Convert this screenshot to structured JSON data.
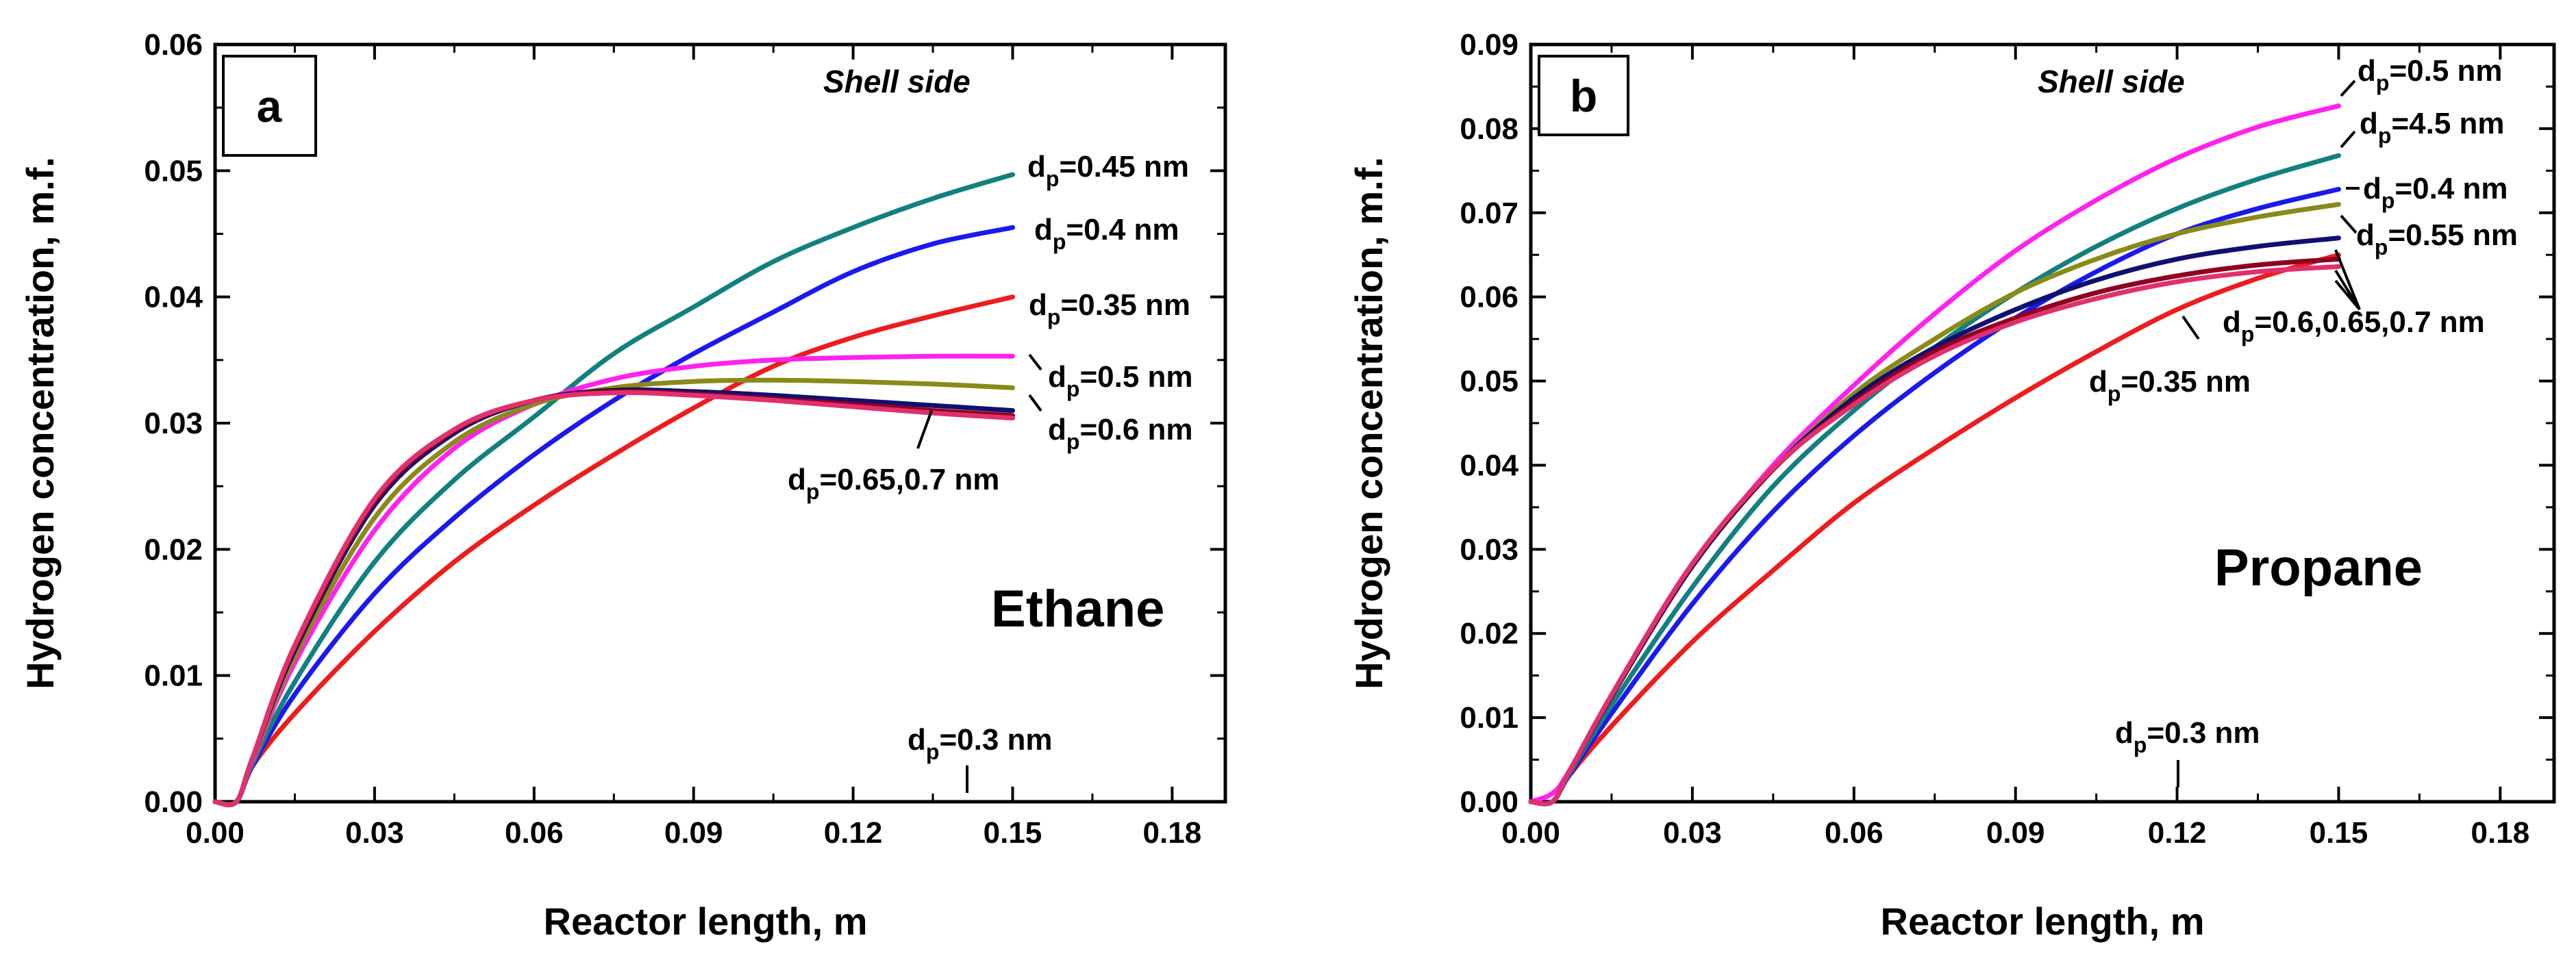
{
  "chart_data": [
    {
      "type": "line",
      "panel_label": "a",
      "annotation_top": "Shell side",
      "gas_label": "Ethane",
      "xlabel": "Reactor length, m",
      "ylabel": "Hydrogen concentration, m.f.",
      "xlim": [
        0,
        0.19
      ],
      "ylim": [
        0,
        0.06
      ],
      "xticks": [
        "0.00",
        "0.03",
        "0.06",
        "0.09",
        "0.12",
        "0.15",
        "0.18"
      ],
      "yticks": [
        "0.00",
        "0.01",
        "0.02",
        "0.03",
        "0.04",
        "0.05",
        "0.06"
      ],
      "series": [
        {
          "name": "dp=0.35 nm",
          "color": "#ee1c1c",
          "x": [
            0,
            0.004,
            0.007,
            0.015,
            0.03,
            0.045,
            0.06,
            0.075,
            0.09,
            0.105,
            0.12,
            0.135,
            0.15
          ],
          "y": [
            0,
            0,
            0.0028,
            0.007,
            0.0135,
            0.019,
            0.0235,
            0.0275,
            0.0312,
            0.0345,
            0.0368,
            0.0385,
            0.04
          ]
        },
        {
          "name": "dp=0.4 nm",
          "color": "#1a1aee",
          "x": [
            0,
            0.004,
            0.007,
            0.015,
            0.03,
            0.045,
            0.06,
            0.075,
            0.09,
            0.105,
            0.12,
            0.135,
            0.15
          ],
          "y": [
            0,
            0,
            0.0028,
            0.0085,
            0.0165,
            0.0225,
            0.0275,
            0.0318,
            0.0355,
            0.0388,
            0.042,
            0.0442,
            0.0455
          ]
        },
        {
          "name": "dp=0.45 nm",
          "color": "#128080",
          "x": [
            0,
            0.004,
            0.007,
            0.015,
            0.03,
            0.045,
            0.06,
            0.075,
            0.09,
            0.105,
            0.12,
            0.135,
            0.15
          ],
          "y": [
            0,
            0,
            0.003,
            0.0095,
            0.019,
            0.0255,
            0.0305,
            0.0355,
            0.0392,
            0.0428,
            0.0455,
            0.0478,
            0.0497
          ]
        },
        {
          "name": "dp=0.5 nm",
          "color": "#ff22ee",
          "x": [
            0,
            0.004,
            0.007,
            0.015,
            0.03,
            0.045,
            0.06,
            0.075,
            0.09,
            0.105,
            0.12,
            0.135,
            0.15
          ],
          "y": [
            0,
            0,
            0.0032,
            0.011,
            0.0215,
            0.028,
            0.0315,
            0.0335,
            0.0345,
            0.035,
            0.0352,
            0.0353,
            0.0353
          ]
        },
        {
          "name": "dp=0.55 nm",
          "color": "#8a8a1a",
          "x": [
            0,
            0.004,
            0.007,
            0.015,
            0.03,
            0.045,
            0.06,
            0.075,
            0.09,
            0.105,
            0.12,
            0.135,
            0.15
          ],
          "y": [
            0,
            0,
            0.0033,
            0.0115,
            0.0225,
            0.0285,
            0.0315,
            0.0328,
            0.0333,
            0.0334,
            0.0333,
            0.0331,
            0.0328
          ]
        },
        {
          "name": "dp=0.6 nm",
          "color": "#101070",
          "x": [
            0,
            0.004,
            0.007,
            0.015,
            0.03,
            0.045,
            0.06,
            0.075,
            0.09,
            0.105,
            0.12,
            0.135,
            0.15
          ],
          "y": [
            0,
            0,
            0.0034,
            0.012,
            0.0235,
            0.0292,
            0.0318,
            0.0326,
            0.0325,
            0.0322,
            0.0318,
            0.0314,
            0.031
          ]
        },
        {
          "name": "dp=0.65 nm",
          "color": "#900020",
          "x": [
            0,
            0.004,
            0.007,
            0.015,
            0.03,
            0.045,
            0.06,
            0.075,
            0.09,
            0.105,
            0.12,
            0.135,
            0.15
          ],
          "y": [
            0,
            0,
            0.0034,
            0.0122,
            0.0238,
            0.0294,
            0.0318,
            0.0325,
            0.0323,
            0.0319,
            0.0315,
            0.031,
            0.0306
          ]
        },
        {
          "name": "dp=0.7 nm",
          "color": "#e0306e",
          "x": [
            0,
            0.004,
            0.007,
            0.015,
            0.03,
            0.045,
            0.06,
            0.075,
            0.09,
            0.105,
            0.12,
            0.135,
            0.15
          ],
          "y": [
            0,
            0,
            0.0034,
            0.0124,
            0.024,
            0.0295,
            0.0318,
            0.0324,
            0.0322,
            0.0318,
            0.0313,
            0.0308,
            0.0304
          ]
        }
      ],
      "labels": [
        {
          "base": "d",
          "sub": "p",
          "rest": "=0.45 nm"
        },
        {
          "base": "d",
          "sub": "p",
          "rest": "=0.4 nm"
        },
        {
          "base": "d",
          "sub": "p",
          "rest": "=0.35 nm"
        },
        {
          "base": "d",
          "sub": "p",
          "rest": "=0.5 nm"
        },
        {
          "base": "d",
          "sub": "p",
          "rest": "=0.6 nm"
        },
        {
          "base": "d",
          "sub": "p",
          "rest": "=0.65,0.7 nm"
        },
        {
          "base": "d",
          "sub": "p",
          "rest": "=0.3 nm"
        }
      ]
    },
    {
      "type": "line",
      "panel_label": "b",
      "annotation_top": "Shell side",
      "gas_label": "Propane",
      "xlabel": "Reactor length, m",
      "ylabel": "Hydrogen concentration, m.f.",
      "xlim": [
        0,
        0.19
      ],
      "ylim": [
        0,
        0.09
      ],
      "xticks": [
        "0.00",
        "0.03",
        "0.06",
        "0.09",
        "0.12",
        "0.15",
        "0.18"
      ],
      "yticks": [
        "0.00",
        "0.01",
        "0.02",
        "0.03",
        "0.04",
        "0.05",
        "0.06",
        "0.07",
        "0.08",
        "0.09"
      ],
      "series": [
        {
          "name": "dp=0.35 nm",
          "color": "#ee1c1c",
          "x": [
            0,
            0.004,
            0.007,
            0.015,
            0.03,
            0.045,
            0.06,
            0.075,
            0.09,
            0.105,
            0.12,
            0.135,
            0.15
          ],
          "y": [
            0,
            0,
            0.003,
            0.009,
            0.019,
            0.0275,
            0.0355,
            0.042,
            0.048,
            0.0535,
            0.0585,
            0.0622,
            0.065
          ]
        },
        {
          "name": "dp=0.4 nm",
          "color": "#1a1aee",
          "x": [
            0,
            0.004,
            0.007,
            0.015,
            0.03,
            0.045,
            0.06,
            0.075,
            0.09,
            0.105,
            0.12,
            0.135,
            0.15
          ],
          "y": [
            0,
            0,
            0.003,
            0.0105,
            0.0235,
            0.0345,
            0.0435,
            0.051,
            0.0575,
            0.063,
            0.0675,
            0.0705,
            0.0728
          ]
        },
        {
          "name": "dp=0.45 nm",
          "color": "#128080",
          "x": [
            0,
            0.004,
            0.007,
            0.015,
            0.03,
            0.045,
            0.06,
            0.075,
            0.09,
            0.105,
            0.12,
            0.135,
            0.15
          ],
          "y": [
            0,
            0,
            0.0032,
            0.0115,
            0.0255,
            0.0375,
            0.0465,
            0.054,
            0.0605,
            0.066,
            0.0705,
            0.074,
            0.0768
          ]
        },
        {
          "name": "dp=0.5 nm",
          "color": "#ff22ee",
          "x": [
            0,
            0.004,
            0.007,
            0.015,
            0.03,
            0.045,
            0.06,
            0.075,
            0.09,
            0.105,
            0.12,
            0.135,
            0.15
          ],
          "y": [
            0,
            0.001,
            0.0035,
            0.0125,
            0.028,
            0.04,
            0.0495,
            0.058,
            0.0655,
            0.0715,
            0.0765,
            0.0802,
            0.0827
          ]
        },
        {
          "name": "dp=0.55 nm",
          "color": "#8a8a1a",
          "x": [
            0,
            0.004,
            0.007,
            0.015,
            0.03,
            0.045,
            0.06,
            0.075,
            0.09,
            0.105,
            0.12,
            0.135,
            0.15
          ],
          "y": [
            0,
            0,
            0.0034,
            0.0125,
            0.028,
            0.0395,
            0.0485,
            0.055,
            0.0605,
            0.0645,
            0.0675,
            0.0695,
            0.071
          ]
        },
        {
          "name": "dp=0.6 nm",
          "color": "#101070",
          "x": [
            0,
            0.004,
            0.007,
            0.015,
            0.03,
            0.045,
            0.06,
            0.075,
            0.09,
            0.105,
            0.12,
            0.135,
            0.15
          ],
          "y": [
            0,
            0,
            0.0034,
            0.0125,
            0.028,
            0.0395,
            0.048,
            0.054,
            0.0585,
            0.062,
            0.0645,
            0.066,
            0.067
          ]
        },
        {
          "name": "dp=0.65 nm",
          "color": "#900020",
          "x": [
            0,
            0.004,
            0.007,
            0.015,
            0.03,
            0.045,
            0.06,
            0.075,
            0.09,
            0.105,
            0.12,
            0.135,
            0.15
          ],
          "y": [
            0,
            0,
            0.0034,
            0.0126,
            0.0282,
            0.0395,
            0.0475,
            0.0535,
            0.0575,
            0.0605,
            0.0625,
            0.0638,
            0.0645
          ]
        },
        {
          "name": "dp=0.7 nm",
          "color": "#e0306e",
          "x": [
            0,
            0.004,
            0.007,
            0.015,
            0.03,
            0.045,
            0.06,
            0.075,
            0.09,
            0.105,
            0.12,
            0.135,
            0.15
          ],
          "y": [
            0,
            0,
            0.0034,
            0.0127,
            0.0283,
            0.0396,
            0.0472,
            0.053,
            0.057,
            0.0598,
            0.0618,
            0.063,
            0.0636
          ]
        }
      ],
      "labels": [
        {
          "base": "d",
          "sub": "p",
          "rest": "=0.5 nm"
        },
        {
          "base": "d",
          "sub": "p",
          "rest": "=4.5 nm"
        },
        {
          "base": "d",
          "sub": "p",
          "rest": "=0.4 nm"
        },
        {
          "base": "d",
          "sub": "p",
          "rest": "=0.55 nm"
        },
        {
          "base": "d",
          "sub": "p",
          "rest": "=0.6,0.65,0.7 nm"
        },
        {
          "base": "d",
          "sub": "p",
          "rest": "=0.35 nm"
        },
        {
          "base": "d",
          "sub": "p",
          "rest": "=0.3 nm"
        }
      ]
    }
  ]
}
